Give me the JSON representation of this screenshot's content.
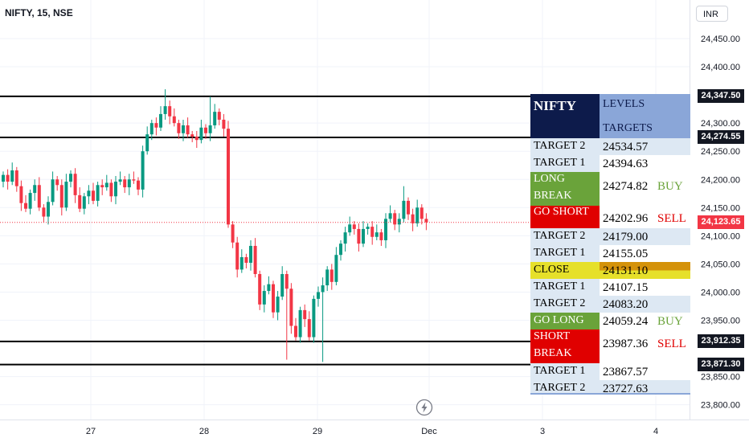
{
  "chart_data": {
    "type": "candlestick",
    "title": "NIFTY, 15, NSE",
    "currency": "INR",
    "ylim": [
      23785,
      24485
    ],
    "y_ticks": [
      "24,450.00",
      "24,400.00",
      "24,300.00",
      "24,250.00",
      "24,200.00",
      "24,150.00",
      "24,100.00",
      "24,050.00",
      "24,000.00",
      "23,950.00",
      "23,850.00",
      "23,800.00"
    ],
    "y_tick_values": [
      24450,
      24400,
      24300,
      24250,
      24200,
      24150,
      24100,
      24050,
      24000,
      23950,
      23850,
      23800
    ],
    "x_ticks": [
      "27",
      "28",
      "29",
      "Dec",
      "3",
      "4"
    ],
    "price_tags": [
      {
        "label": "24,347.50",
        "value": 24347.5,
        "color": "black"
      },
      {
        "label": "24,274.55",
        "value": 24274.55,
        "color": "black"
      },
      {
        "label": "24,123.65",
        "value": 24123.65,
        "color": "red"
      },
      {
        "label": "23,912.35",
        "value": 23912.35,
        "color": "black"
      },
      {
        "label": "23,871.30",
        "value": 23871.3,
        "color": "black"
      }
    ],
    "horizontal_lines": [
      24347.5,
      24274.55,
      23912.35,
      23871.3
    ],
    "last_price": 24123.65,
    "closes": [
      24208,
      24196,
      24216,
      24188,
      24158,
      24148,
      24176,
      24190,
      24150,
      24134,
      24160,
      24200,
      24190,
      24150,
      24196,
      24210,
      24172,
      24148,
      24170,
      24180,
      24162,
      24190,
      24186,
      24194,
      24170,
      24196,
      24200,
      24186,
      24200,
      24198,
      24182,
      24250,
      24280,
      24300,
      24292,
      24316,
      24330,
      24312,
      24300,
      24282,
      24296,
      24280,
      24276,
      24270,
      24292,
      24282,
      24296,
      24320,
      24306,
      24290,
      24120,
      24088,
      24040,
      24062,
      24052,
      24082,
      24032,
      23978,
      24002,
      24014,
      23964,
      23992,
      24032,
      24006,
      23940,
      23920,
      23968,
      23952,
      23920,
      23988,
      24000,
      24012,
      24040,
      24018,
      24066,
      24086,
      24106,
      24120,
      24112,
      24086,
      24112,
      24116,
      24098,
      24106,
      24092,
      24130,
      24140,
      24120,
      24130,
      24162,
      24138,
      24122,
      24150,
      24130,
      24124
    ],
    "highs_extra_spikes": {
      "36": 24360,
      "46": 24347,
      "63": 23880,
      "71": 23876,
      "89": 24188
    }
  },
  "levels_table": {
    "header_left": "NIFTY",
    "header_right_1": "LEVELS",
    "header_right_2": "TARGETS",
    "rows": [
      {
        "label": "TARGET 2",
        "value": "24534.57"
      },
      {
        "label": "TARGET 1",
        "value": "24394.63"
      },
      {
        "label": "LONG",
        "label2": "BREAK",
        "value": "24274.82",
        "signal": "BUY"
      },
      {
        "label": "GO SHORT",
        "value": "24202.96",
        "signal": "SELL"
      },
      {
        "label": "TARGET 2",
        "value": "24179.00"
      },
      {
        "label": "TARGET 1",
        "value": "24155.05"
      },
      {
        "label": "CLOSE",
        "value": "24131.10"
      },
      {
        "label": "TARGET 1",
        "value": "24107.15"
      },
      {
        "label": "TARGET 2",
        "value": "24083.20"
      },
      {
        "label": "GO LONG",
        "value": "24059.24",
        "signal": "BUY"
      },
      {
        "label": "SHORT",
        "label2": "BREAK",
        "value": "23987.36",
        "signal": "SELL"
      },
      {
        "label": "TARGET 1",
        "value": "23867.57"
      },
      {
        "label": "TARGET 2",
        "value": "23727.63"
      }
    ]
  },
  "colors": {
    "up": "#089981",
    "down": "#f23645",
    "header_dark": "#0d1b4b",
    "header_light": "#8aa6d8",
    "row_light": "#dde8f3",
    "green": "#6aa33a",
    "red": "#e00000",
    "yellow": "#e6e02a",
    "orange": "#d4920a"
  },
  "logo_icon": "lightning-bolt-icon"
}
